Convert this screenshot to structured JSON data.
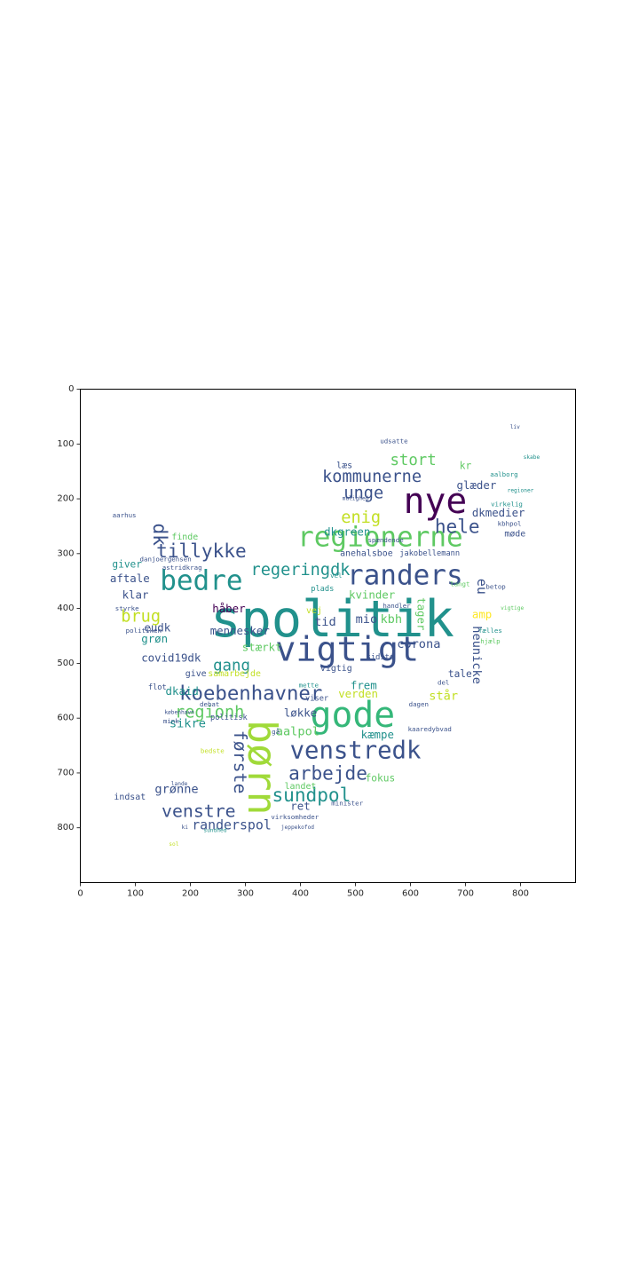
{
  "chart_data": {
    "type": "wordcloud",
    "xlim": [
      0,
      900
    ],
    "ylim": [
      900,
      0
    ],
    "x_ticks": [
      0,
      100,
      200,
      300,
      400,
      500,
      600,
      700,
      800
    ],
    "y_ticks": [
      0,
      100,
      200,
      300,
      400,
      500,
      600,
      700,
      800
    ],
    "palette": [
      "#440154",
      "#3b528b",
      "#21918c",
      "#5ec962",
      "#fde725"
    ],
    "words": [
      {
        "text": "spolitik",
        "x": 458,
        "y": 420,
        "size": 92,
        "color": "#21918c"
      },
      {
        "text": "nye",
        "x": 645,
        "y": 205,
        "size": 64,
        "color": "#440154"
      },
      {
        "text": "regionerne",
        "x": 545,
        "y": 270,
        "size": 50,
        "color": "#5ec962"
      },
      {
        "text": "randers",
        "x": 590,
        "y": 340,
        "size": 50,
        "color": "#3b528b"
      },
      {
        "text": "vigtigt",
        "x": 485,
        "y": 475,
        "size": 62,
        "color": "#3b528b"
      },
      {
        "text": "gode",
        "x": 495,
        "y": 595,
        "size": 64,
        "color": "#35b779"
      },
      {
        "text": "bedre",
        "x": 220,
        "y": 350,
        "size": 50,
        "color": "#21918c"
      },
      {
        "text": "børn",
        "x": 330,
        "y": 690,
        "size": 72,
        "color": "#a0da39",
        "rotate": true
      },
      {
        "text": "venstredk",
        "x": 500,
        "y": 660,
        "size": 44,
        "color": "#3b528b"
      },
      {
        "text": "koebenhavner",
        "x": 310,
        "y": 555,
        "size": 36,
        "color": "#3b528b"
      },
      {
        "text": "kommunerne",
        "x": 530,
        "y": 160,
        "size": 30,
        "color": "#3b528b"
      },
      {
        "text": "tillykke",
        "x": 220,
        "y": 295,
        "size": 34,
        "color": "#3b528b"
      },
      {
        "text": "regeringdk",
        "x": 400,
        "y": 330,
        "size": 30,
        "color": "#21918c"
      },
      {
        "text": "arbejde",
        "x": 450,
        "y": 700,
        "size": 34,
        "color": "#3b528b"
      },
      {
        "text": "sundpol",
        "x": 420,
        "y": 740,
        "size": 34,
        "color": "#21918c"
      },
      {
        "text": "venstre",
        "x": 215,
        "y": 770,
        "size": 32,
        "color": "#3b528b"
      },
      {
        "text": "regionh",
        "x": 235,
        "y": 590,
        "size": 30,
        "color": "#5ec962"
      },
      {
        "text": "første",
        "x": 290,
        "y": 680,
        "size": 32,
        "color": "#3b528b",
        "rotate": true
      },
      {
        "text": "hele",
        "x": 685,
        "y": 250,
        "size": 34,
        "color": "#3b528b"
      },
      {
        "text": "stort",
        "x": 605,
        "y": 130,
        "size": 28,
        "color": "#5ec962"
      },
      {
        "text": "enig",
        "x": 510,
        "y": 235,
        "size": 30,
        "color": "#c2df23"
      },
      {
        "text": "unge",
        "x": 515,
        "y": 190,
        "size": 30,
        "color": "#3b528b"
      },
      {
        "text": "brug",
        "x": 110,
        "y": 415,
        "size": 30,
        "color": "#c2df23"
      },
      {
        "text": "dk",
        "x": 145,
        "y": 265,
        "size": 34,
        "color": "#3b528b",
        "rotate": true
      },
      {
        "text": "gang",
        "x": 275,
        "y": 505,
        "size": 28,
        "color": "#21918c"
      },
      {
        "text": "stærkt",
        "x": 330,
        "y": 470,
        "size": 20,
        "color": "#5ec962"
      },
      {
        "text": "mennesker",
        "x": 290,
        "y": 440,
        "size": 20,
        "color": "#3b528b"
      },
      {
        "text": "randerspol",
        "x": 275,
        "y": 795,
        "size": 24,
        "color": "#3b528b"
      },
      {
        "text": "grønne",
        "x": 175,
        "y": 730,
        "size": 22,
        "color": "#3b528b"
      },
      {
        "text": "corona",
        "x": 615,
        "y": 465,
        "size": 22,
        "color": "#3b528b"
      },
      {
        "text": "aalpol",
        "x": 395,
        "y": 625,
        "size": 22,
        "color": "#5ec962"
      },
      {
        "text": "eu",
        "x": 730,
        "y": 360,
        "size": 24,
        "color": "#3b528b",
        "rotate": true
      },
      {
        "text": "heunicke",
        "x": 720,
        "y": 485,
        "size": 22,
        "color": "#3b528b",
        "rotate": true
      },
      {
        "text": "dkmedier",
        "x": 760,
        "y": 225,
        "size": 20,
        "color": "#3b528b"
      },
      {
        "text": "glæder",
        "x": 720,
        "y": 175,
        "size": 20,
        "color": "#3b528b"
      },
      {
        "text": "covid19dk",
        "x": 165,
        "y": 490,
        "size": 20,
        "color": "#3b528b"
      },
      {
        "text": "dkaid",
        "x": 185,
        "y": 550,
        "size": 20,
        "color": "#21918c"
      },
      {
        "text": "sikre",
        "x": 195,
        "y": 610,
        "size": 22,
        "color": "#21918c"
      },
      {
        "text": "løkke",
        "x": 400,
        "y": 590,
        "size": 20,
        "color": "#3b528b"
      },
      {
        "text": "kæmpe",
        "x": 540,
        "y": 630,
        "size": 20,
        "color": "#21918c"
      },
      {
        "text": "verden",
        "x": 505,
        "y": 555,
        "size": 20,
        "color": "#c2df23"
      },
      {
        "text": "frem",
        "x": 515,
        "y": 540,
        "size": 20,
        "color": "#21918c"
      },
      {
        "text": "står",
        "x": 660,
        "y": 560,
        "size": 22,
        "color": "#c2df23"
      },
      {
        "text": "tale",
        "x": 690,
        "y": 520,
        "size": 18,
        "color": "#3b528b"
      },
      {
        "text": "kbh",
        "x": 565,
        "y": 420,
        "size": 22,
        "color": "#5ec962"
      },
      {
        "text": "mio",
        "x": 520,
        "y": 420,
        "size": 22,
        "color": "#3b528b"
      },
      {
        "text": "tid",
        "x": 445,
        "y": 425,
        "size": 22,
        "color": "#3b528b"
      },
      {
        "text": "kvinder",
        "x": 530,
        "y": 375,
        "size": 20,
        "color": "#5ec962"
      },
      {
        "text": "tager",
        "x": 620,
        "y": 410,
        "size": 20,
        "color": "#5ec962",
        "rotate": true
      },
      {
        "text": "amp",
        "x": 730,
        "y": 410,
        "size": 20,
        "color": "#fde725"
      },
      {
        "text": "dkgreen",
        "x": 485,
        "y": 260,
        "size": 20,
        "color": "#21918c"
      },
      {
        "text": "håber",
        "x": 270,
        "y": 400,
        "size": 20,
        "color": "#440154"
      },
      {
        "text": "klar",
        "x": 100,
        "y": 375,
        "size": 20,
        "color": "#3b528b"
      },
      {
        "text": "aftale",
        "x": 90,
        "y": 345,
        "size": 20,
        "color": "#3b528b"
      },
      {
        "text": "giver",
        "x": 85,
        "y": 320,
        "size": 18,
        "color": "#21918c"
      },
      {
        "text": "eudk",
        "x": 140,
        "y": 435,
        "size": 20,
        "color": "#3b528b"
      },
      {
        "text": "grøn",
        "x": 135,
        "y": 455,
        "size": 20,
        "color": "#21918c"
      },
      {
        "text": "indsat",
        "x": 90,
        "y": 745,
        "size": 16,
        "color": "#3b528b"
      },
      {
        "text": "ret",
        "x": 400,
        "y": 760,
        "size": 20,
        "color": "#3b528b"
      },
      {
        "text": "fokus",
        "x": 545,
        "y": 710,
        "size": 18,
        "color": "#5ec962"
      },
      {
        "text": "landet",
        "x": 400,
        "y": 725,
        "size": 16,
        "color": "#5ec962"
      },
      {
        "text": "kr",
        "x": 700,
        "y": 140,
        "size": 18,
        "color": "#5ec962"
      },
      {
        "text": "læs",
        "x": 480,
        "y": 140,
        "size": 16,
        "color": "#3b528b"
      },
      {
        "text": "udsatte",
        "x": 570,
        "y": 95,
        "size": 12,
        "color": "#3b528b"
      },
      {
        "text": "møde",
        "x": 790,
        "y": 265,
        "size": 16,
        "color": "#3b528b"
      },
      {
        "text": "anehalsboe",
        "x": 520,
        "y": 300,
        "size": 16,
        "color": "#3b528b"
      },
      {
        "text": "jakobellemann",
        "x": 635,
        "y": 300,
        "size": 14,
        "color": "#3b528b"
      },
      {
        "text": "spændende",
        "x": 555,
        "y": 275,
        "size": 12,
        "color": "#3b528b"
      },
      {
        "text": "kbhpol",
        "x": 780,
        "y": 245,
        "size": 12,
        "color": "#3b528b"
      },
      {
        "text": "virkelig",
        "x": 775,
        "y": 210,
        "size": 12,
        "color": "#21918c"
      },
      {
        "text": "vigtig",
        "x": 465,
        "y": 510,
        "size": 16,
        "color": "#3b528b"
      },
      {
        "text": "sidste",
        "x": 545,
        "y": 490,
        "size": 14,
        "color": "#3b528b"
      },
      {
        "text": "plads",
        "x": 440,
        "y": 365,
        "size": 14,
        "color": "#21918c"
      },
      {
        "text": "vel",
        "x": 465,
        "y": 340,
        "size": 12,
        "color": "#21918c"
      },
      {
        "text": "vej",
        "x": 425,
        "y": 405,
        "size": 16,
        "color": "#c2df23"
      },
      {
        "text": "handler",
        "x": 575,
        "y": 395,
        "size": 12,
        "color": "#3b528b"
      },
      {
        "text": "langt",
        "x": 690,
        "y": 355,
        "size": 12,
        "color": "#5ec962"
      },
      {
        "text": "betop",
        "x": 755,
        "y": 360,
        "size": 12,
        "color": "#3b528b"
      },
      {
        "text": "fælles",
        "x": 745,
        "y": 440,
        "size": 12,
        "color": "#21918c"
      },
      {
        "text": "vigtige",
        "x": 785,
        "y": 400,
        "size": 10,
        "color": "#5ec962"
      },
      {
        "text": "hjælp",
        "x": 745,
        "y": 460,
        "size": 12,
        "color": "#5ec962"
      },
      {
        "text": "samarbejde",
        "x": 280,
        "y": 520,
        "size": 16,
        "color": "#c2df23"
      },
      {
        "text": "give",
        "x": 210,
        "y": 520,
        "size": 16,
        "color": "#3b528b"
      },
      {
        "text": "flot",
        "x": 140,
        "y": 545,
        "size": 14,
        "color": "#3b528b"
      },
      {
        "text": "finde",
        "x": 190,
        "y": 270,
        "size": 16,
        "color": "#5ec962"
      },
      {
        "text": "danjoergensen",
        "x": 155,
        "y": 310,
        "size": 12,
        "color": "#3b528b"
      },
      {
        "text": "astridkrag",
        "x": 185,
        "y": 325,
        "size": 12,
        "color": "#3b528b"
      },
      {
        "text": "styrke",
        "x": 85,
        "y": 400,
        "size": 12,
        "color": "#3b528b"
      },
      {
        "text": "politiken",
        "x": 115,
        "y": 440,
        "size": 12,
        "color": "#3b528b"
      },
      {
        "text": "debat",
        "x": 235,
        "y": 575,
        "size": 12,
        "color": "#3b528b"
      },
      {
        "text": "mink",
        "x": 165,
        "y": 605,
        "size": 12,
        "color": "#3b528b"
      },
      {
        "text": "københavn",
        "x": 180,
        "y": 590,
        "size": 10,
        "color": "#3b528b"
      },
      {
        "text": "politisk",
        "x": 270,
        "y": 600,
        "size": 14,
        "color": "#3b528b"
      },
      {
        "text": "viser",
        "x": 430,
        "y": 565,
        "size": 14,
        "color": "#3b528b"
      },
      {
        "text": "mette",
        "x": 415,
        "y": 540,
        "size": 12,
        "color": "#21918c"
      },
      {
        "text": "gå",
        "x": 355,
        "y": 625,
        "size": 12,
        "color": "#3b528b"
      },
      {
        "text": "kaaredybvad",
        "x": 635,
        "y": 620,
        "size": 12,
        "color": "#3b528b"
      },
      {
        "text": "dagen",
        "x": 615,
        "y": 575,
        "size": 12,
        "color": "#3b528b"
      },
      {
        "text": "del",
        "x": 660,
        "y": 535,
        "size": 12,
        "color": "#3b528b"
      },
      {
        "text": "minister",
        "x": 485,
        "y": 755,
        "size": 12,
        "color": "#3b528b"
      },
      {
        "text": "virksomheder",
        "x": 390,
        "y": 780,
        "size": 12,
        "color": "#3b528b"
      },
      {
        "text": "aarhus",
        "x": 80,
        "y": 230,
        "size": 12,
        "color": "#3b528b"
      },
      {
        "text": "aalborg",
        "x": 770,
        "y": 155,
        "size": 12,
        "color": "#21918c"
      },
      {
        "text": "liv",
        "x": 790,
        "y": 70,
        "size": 10,
        "color": "#3b528b"
      },
      {
        "text": "skabe",
        "x": 820,
        "y": 125,
        "size": 10,
        "color": "#21918c"
      },
      {
        "text": "mulighed",
        "x": 500,
        "y": 200,
        "size": 10,
        "color": "#3b528b"
      },
      {
        "text": "regioner",
        "x": 800,
        "y": 185,
        "size": 10,
        "color": "#21918c"
      },
      {
        "text": "jeppekofod",
        "x": 395,
        "y": 800,
        "size": 10,
        "color": "#3b528b"
      },
      {
        "text": "sundhed",
        "x": 245,
        "y": 805,
        "size": 10,
        "color": "#21918c"
      },
      {
        "text": "ki",
        "x": 190,
        "y": 800,
        "size": 10,
        "color": "#3b528b"
      },
      {
        "text": "sol",
        "x": 170,
        "y": 830,
        "size": 10,
        "color": "#c2df23"
      },
      {
        "text": "bedste",
        "x": 240,
        "y": 660,
        "size": 12,
        "color": "#c2df23"
      },
      {
        "text": "lande",
        "x": 180,
        "y": 720,
        "size": 10,
        "color": "#3b528b"
      }
    ]
  }
}
